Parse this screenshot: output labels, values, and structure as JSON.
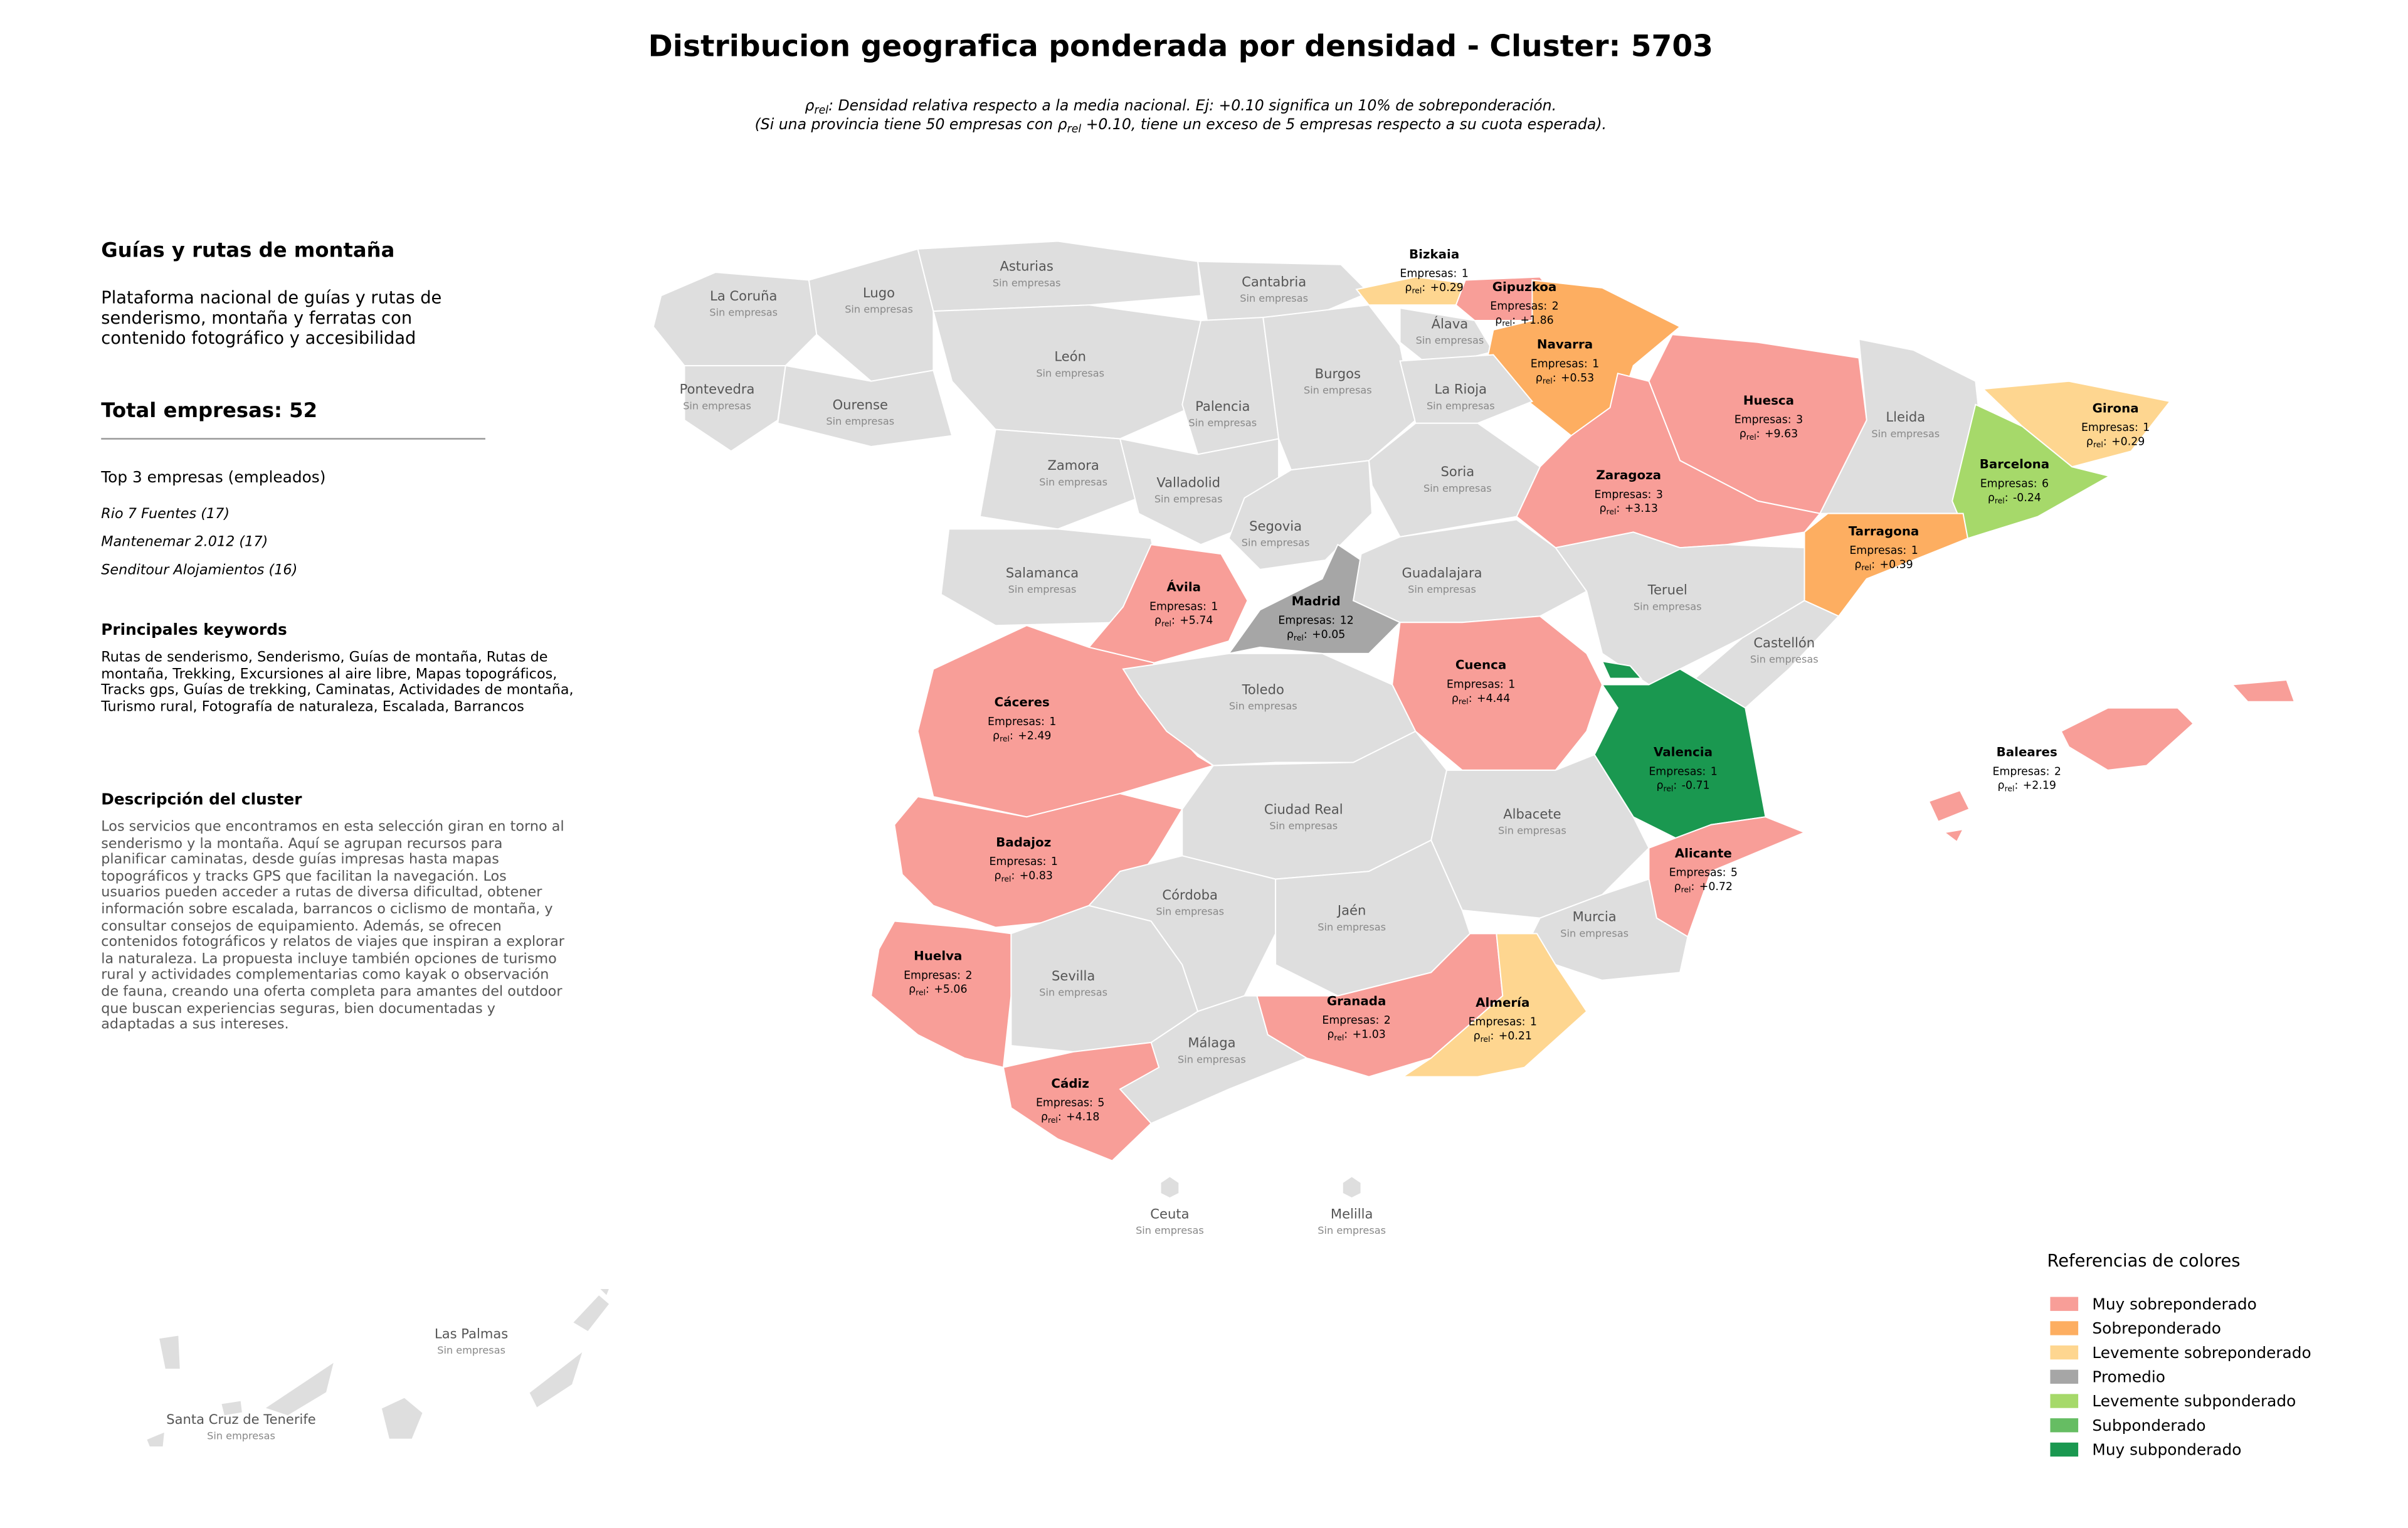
{
  "header": {
    "title": "Distribucion geografica ponderada por densidad - Cluster: 5703",
    "subtitle_line1": ": Densidad relativa respecto a la media nacional. Ej: +0.10 significa un 10% de sobreponderación.",
    "subtitle_line2_before": "(Si una provincia tiene 50 empresas con",
    "subtitle_line2_after": "+0.10, tiene un exceso de 5 empresas respecto a su cuota esperada)."
  },
  "panel": {
    "title": "Guías y rutas de montaña",
    "description": "Plataforma nacional de guías y rutas de senderismo, montaña y ferratas con contenido fotográfico y accesibilidad",
    "total": "Total empresas: 52",
    "top_heading": "Top 3 empresas (empleados)",
    "top": [
      "Rio 7 Fuentes (17)",
      "Mantenemar 2.012 (17)",
      "Senditour Alojamientos (16)"
    ],
    "keywords_heading": "Principales keywords",
    "keywords": "Rutas de senderismo, Senderismo, Guías de montaña, Rutas de montaña, Trekking, Excursiones al aire libre, Mapas topográficos, Tracks gps, Guías de trekking, Caminatas, Actividades de montaña, Turismo rural, Fotografía de naturaleza, Escalada, Barrancos",
    "cluster_heading": "Descripción del cluster",
    "cluster_text": "Los servicios que encontramos en esta selección giran en torno al senderismo y la montaña. Aquí se agrupan recursos para planificar caminatas, desde guías impresas hasta mapas topográficos y tracks GPS que facilitan la navegación. Los usuarios pueden acceder a rutas de diversa dificultad, obtener información sobre escalada, barrancos o ciclismo de montaña, y consultar consejos de equipamiento. Además, se ofrecen contenidos fotográficos y relatos de viajes que inspiran a explorar la naturaleza. La propuesta incluye también opciones de turismo rural y actividades complementarias como kayak o observación de fauna, creando una oferta completa para amantes del outdoor que buscan experiencias seguras, bien documentadas y adaptadas a sus intereses."
  },
  "map": {
    "labels": {
      "companies": "Empresas:",
      "rho": "ρ",
      "rho_sub": "rel",
      "rho_colon": ":",
      "none": "Sin empresas"
    },
    "provinces": [
      {
        "name": "La Coruña",
        "color": "#dedede"
      },
      {
        "name": "Lugo",
        "color": "#dedede"
      },
      {
        "name": "Pontevedra",
        "color": "#dedede"
      },
      {
        "name": "Ourense",
        "color": "#dedede"
      },
      {
        "name": "Asturias",
        "color": "#dedede"
      },
      {
        "name": "Cantabria",
        "color": "#dedede"
      },
      {
        "name": "Bizkaia",
        "companies": 1,
        "rho": 0.29,
        "rho_label": "+0.29",
        "color": "#fed690"
      },
      {
        "name": "Gipuzkoa",
        "companies": 2,
        "rho": 1.86,
        "rho_label": "+1.86",
        "color": "#f89e98"
      },
      {
        "name": "Álava",
        "color": "#dedede"
      },
      {
        "name": "Navarra",
        "companies": 1,
        "rho": 0.53,
        "rho_label": "+0.53",
        "color": "#fdae61"
      },
      {
        "name": "León",
        "color": "#dedede"
      },
      {
        "name": "Palencia",
        "color": "#dedede"
      },
      {
        "name": "Burgos",
        "color": "#dedede"
      },
      {
        "name": "La Rioja",
        "color": "#dedede"
      },
      {
        "name": "Huesca",
        "companies": 3,
        "rho": 9.63,
        "rho_label": "+9.63",
        "color": "#f89e98"
      },
      {
        "name": "Lleida",
        "color": "#dedede"
      },
      {
        "name": "Girona",
        "companies": 1,
        "rho": 0.29,
        "rho_label": "+0.29",
        "color": "#fed690"
      },
      {
        "name": "Barcelona",
        "companies": 6,
        "rho": -0.24,
        "color": "#a6d96a"
      },
      {
        "name": "Tarragona",
        "companies": 1,
        "rho": 0.39,
        "rho_label": "+0.39",
        "color": "#fdae61"
      },
      {
        "name": "Zaragoza",
        "companies": 3,
        "rho": 3.13,
        "rho_label": "+3.13",
        "color": "#f89e98"
      },
      {
        "name": "Soria",
        "color": "#dedede"
      },
      {
        "name": "Zamora",
        "color": "#dedede"
      },
      {
        "name": "Valladolid",
        "color": "#dedede"
      },
      {
        "name": "Segovia",
        "color": "#dedede"
      },
      {
        "name": "Salamanca",
        "color": "#dedede"
      },
      {
        "name": "Ávila",
        "companies": 1,
        "rho": 5.74,
        "rho_label": "+5.74",
        "color": "#f89e98"
      },
      {
        "name": "Madrid",
        "companies": 12,
        "rho": 0.05,
        "rho_label": "+0.05",
        "color": "#a6a6a6"
      },
      {
        "name": "Guadalajara",
        "color": "#dedede"
      },
      {
        "name": "Teruel",
        "color": "#dedede"
      },
      {
        "name": "Castellón",
        "color": "#dedede"
      },
      {
        "name": "Cuenca",
        "companies": 1,
        "rho": 4.44,
        "rho_label": "+4.44",
        "color": "#f89e98"
      },
      {
        "name": "Valencia",
        "companies": 1,
        "rho": -0.71,
        "color": "#1a9850"
      },
      {
        "name": "Cáceres",
        "companies": 1,
        "rho": 2.49,
        "rho_label": "+2.49",
        "color": "#f89e98"
      },
      {
        "name": "Toledo",
        "color": "#dedede"
      },
      {
        "name": "Badajoz",
        "companies": 1,
        "rho": 0.83,
        "rho_label": "+0.83",
        "color": "#f89e98"
      },
      {
        "name": "Ciudad Real",
        "color": "#dedede"
      },
      {
        "name": "Albacete",
        "color": "#dedede"
      },
      {
        "name": "Alicante",
        "companies": 5,
        "rho": 0.72,
        "rho_label": "+0.72",
        "color": "#f89e98"
      },
      {
        "name": "Murcia",
        "color": "#dedede"
      },
      {
        "name": "Huelva",
        "companies": 2,
        "rho": 5.06,
        "rho_label": "+5.06",
        "color": "#f89e98"
      },
      {
        "name": "Sevilla",
        "color": "#dedede"
      },
      {
        "name": "Córdoba",
        "color": "#dedede"
      },
      {
        "name": "Jaén",
        "color": "#dedede"
      },
      {
        "name": "Granada",
        "companies": 2,
        "rho": 1.03,
        "rho_label": "+1.03",
        "color": "#f89e98"
      },
      {
        "name": "Almería",
        "companies": 1,
        "rho": 0.21,
        "rho_label": "+0.21",
        "color": "#fed690"
      },
      {
        "name": "Málaga",
        "color": "#dedede"
      },
      {
        "name": "Cádiz",
        "companies": 5,
        "rho": 4.18,
        "rho_label": "+4.18",
        "color": "#f89e98"
      },
      {
        "name": "Baleares",
        "companies": 2,
        "rho": 2.19,
        "rho_label": "+2.19",
        "color": "#f89e98"
      },
      {
        "name": "Ceuta",
        "color": "#dedede"
      },
      {
        "name": "Melilla",
        "color": "#dedede"
      },
      {
        "name": "Las Palmas",
        "color": "#dedede"
      },
      {
        "name": "Santa Cruz de Tenerife",
        "color": "#dedede"
      }
    ]
  },
  "legend": {
    "title": "Referencias de colores",
    "items": [
      {
        "name": "Muy sobreponderado",
        "color": "#f89e98"
      },
      {
        "name": "Sobreponderado",
        "color": "#fdae61"
      },
      {
        "name": "Levemente sobreponderado",
        "color": "#fed690"
      },
      {
        "name": "Promedio",
        "color": "#a6a6a6"
      },
      {
        "name": "Levemente subponderado",
        "color": "#a6d96a"
      },
      {
        "name": "Subponderado",
        "color": "#66bd63"
      },
      {
        "name": "Muy subponderado",
        "color": "#1a9850"
      }
    ]
  }
}
